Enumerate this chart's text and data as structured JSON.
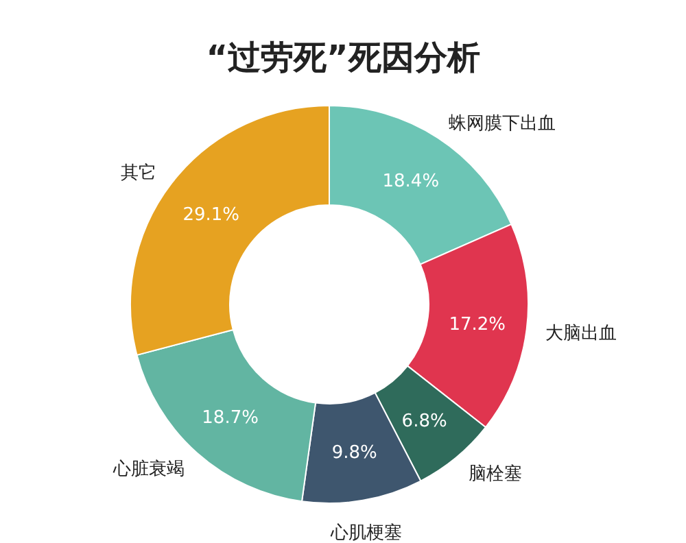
{
  "chart_data": {
    "type": "donut",
    "title": "“过劳死”死因分析",
    "categories": [
      "蛛网膜下出血",
      "大脑出血",
      "脑栓塞",
      "心肌梗塞",
      "心脏衰竭",
      "其它"
    ],
    "values": [
      18.4,
      17.2,
      6.8,
      9.8,
      18.7,
      29.1
    ],
    "value_labels": [
      "18.4%",
      "17.2%",
      "6.8%",
      "9.8%",
      "18.7%",
      "29.1%"
    ],
    "colors": [
      "#6cc5b5",
      "#e0354f",
      "#2f6b5b",
      "#3e566e",
      "#62b5a2",
      "#e6a221"
    ]
  }
}
